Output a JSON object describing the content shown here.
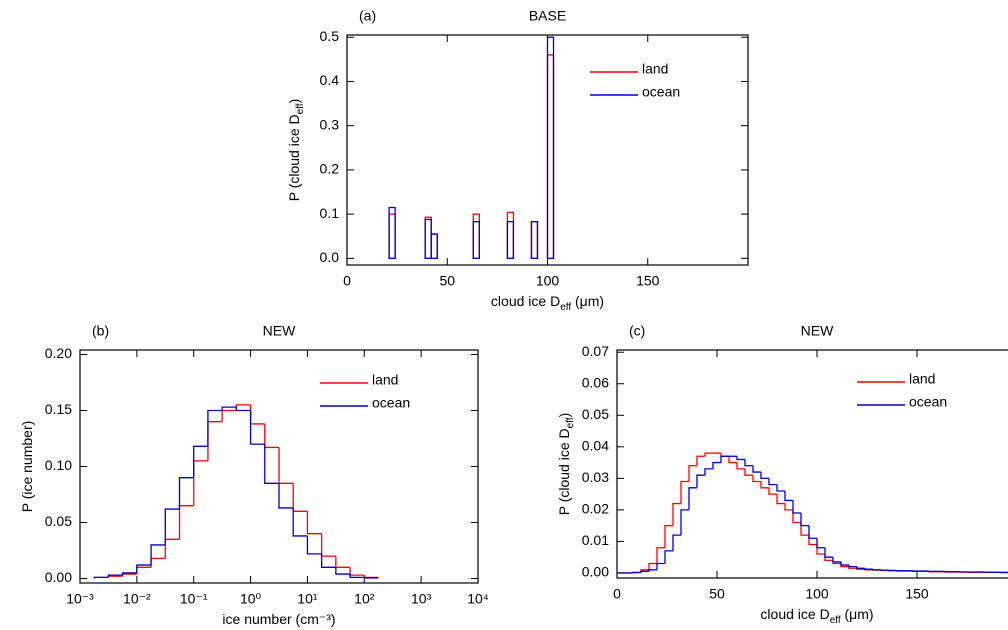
{
  "chart_data": [
    {
      "type": "bar",
      "panel_label": "(a)",
      "title": "BASE",
      "xlabel": [
        "cloud ice D",
        "eff",
        " (μm)"
      ],
      "ylabel": [
        "P (cloud ice D",
        "eff",
        ")"
      ],
      "x": [
        21,
        39,
        42,
        63,
        80,
        92,
        100
      ],
      "series": [
        {
          "name": "land",
          "color": "#ff0000",
          "values": [
            0.1,
            0.093,
            0.055,
            0.1,
            0.104,
            0.083,
            0.46
          ]
        },
        {
          "name": "ocean",
          "color": "#0000cc",
          "values": [
            0.115,
            0.088,
            0.055,
            0.083,
            0.083,
            0.083,
            0.5
          ]
        }
      ],
      "xlim": [
        0,
        200
      ],
      "xticks": [
        0,
        50,
        100,
        150
      ],
      "ylim": [
        -0.015,
        0.505
      ],
      "yticks": [
        {
          "value": 0,
          "label": "0.0"
        },
        {
          "value": 0.1,
          "label": "0.1"
        },
        {
          "value": 0.2,
          "label": "0.2"
        },
        {
          "value": 0.3,
          "label": "0.3"
        },
        {
          "value": 0.4,
          "label": "0.4"
        },
        {
          "value": 0.5,
          "label": "0.5"
        }
      ],
      "legend": "upper right"
    },
    {
      "type": "histogram",
      "panel_label": "(b)",
      "title": "NEW",
      "xlabel": [
        "ice number (cm⁻³)"
      ],
      "ylabel": [
        "P (ice number)"
      ],
      "bins": [
        0.001778,
        0.003162,
        0.005623,
        0.01,
        0.01778,
        0.03162,
        0.05623,
        0.1,
        0.1778,
        0.3162,
        0.5623,
        1,
        1.778,
        3.162,
        5.623,
        10,
        17.78,
        31.62,
        56.23,
        100,
        177.8
      ],
      "series": [
        {
          "name": "land",
          "color": "#ff0000",
          "values": [
            0.001,
            0.002,
            0.004,
            0.01,
            0.018,
            0.035,
            0.065,
            0.105,
            0.14,
            0.15,
            0.155,
            0.138,
            0.117,
            0.085,
            0.06,
            0.04,
            0.02,
            0.01,
            0.003,
            0.001
          ]
        },
        {
          "name": "ocean",
          "color": "#0000cc",
          "values": [
            0.001,
            0.003,
            0.005,
            0.012,
            0.03,
            0.062,
            0.09,
            0.118,
            0.15,
            0.153,
            0.15,
            0.12,
            0.085,
            0.063,
            0.038,
            0.022,
            0.01,
            0.004,
            0.001,
            0.0005
          ]
        }
      ],
      "xlim": [
        0.001,
        10000
      ],
      "xlog": true,
      "xticks": [
        {
          "value": 0.001,
          "label": "10⁻³"
        },
        {
          "value": 0.01,
          "label": "10⁻²"
        },
        {
          "value": 0.1,
          "label": "10⁻¹"
        },
        {
          "value": 1,
          "label": "10⁰"
        },
        {
          "value": 10,
          "label": "10¹"
        },
        {
          "value": 100,
          "label": "10²"
        },
        {
          "value": 1000,
          "label": "10³"
        },
        {
          "value": 10000,
          "label": "10⁴"
        }
      ],
      "ylim": [
        -0.004,
        0.204
      ],
      "yticks": [
        {
          "value": 0,
          "label": "0.00"
        },
        {
          "value": 0.05,
          "label": "0.05"
        },
        {
          "value": 0.1,
          "label": "0.10"
        },
        {
          "value": 0.15,
          "label": "0.15"
        },
        {
          "value": 0.2,
          "label": "0.20"
        }
      ],
      "legend": "upper right"
    },
    {
      "type": "histogram",
      "panel_label": "(c)",
      "title": "NEW",
      "xlabel": [
        "cloud ice D",
        "eff",
        " (μm)"
      ],
      "ylabel": [
        "P (cloud ice D",
        "eff",
        ")"
      ],
      "bins": [
        0,
        4,
        8,
        12,
        16,
        20,
        24,
        28,
        32,
        36,
        40,
        44,
        48,
        52,
        56,
        60,
        64,
        68,
        72,
        76,
        80,
        84,
        88,
        92,
        96,
        100,
        104,
        108,
        112,
        116,
        120,
        124,
        128,
        132,
        136,
        140,
        144,
        148,
        152,
        156,
        160,
        164,
        168,
        172,
        176,
        180,
        184,
        188,
        192,
        196,
        200
      ],
      "series": [
        {
          "name": "land",
          "color": "#ff0000",
          "values": [
            0,
            0,
            0.0002,
            0.001,
            0.003,
            0.008,
            0.015,
            0.022,
            0.029,
            0.034,
            0.037,
            0.038,
            0.038,
            0.037,
            0.035,
            0.033,
            0.031,
            0.029,
            0.027,
            0.025,
            0.022,
            0.02,
            0.016,
            0.012,
            0.009,
            0.006,
            0.004,
            0.003,
            0.002,
            0.0015,
            0.0012,
            0.001,
            0.0009,
            0.0008,
            0.0007,
            0.0006,
            0.0006,
            0.0005,
            0.0005,
            0.0004,
            0.0004,
            0.0003,
            0.0003,
            0.0003,
            0.0002,
            0.0002,
            0.0002,
            0.0002,
            0.0001,
            0.0001
          ]
        },
        {
          "name": "ocean",
          "color": "#0000cc",
          "values": [
            0,
            0,
            0.0001,
            0.0005,
            0.001,
            0.003,
            0.007,
            0.012,
            0.02,
            0.027,
            0.031,
            0.033,
            0.035,
            0.037,
            0.037,
            0.036,
            0.034,
            0.032,
            0.03,
            0.028,
            0.026,
            0.023,
            0.019,
            0.015,
            0.011,
            0.008,
            0.005,
            0.0035,
            0.0025,
            0.002,
            0.0015,
            0.0012,
            0.001,
            0.0009,
            0.0008,
            0.0007,
            0.0007,
            0.0006,
            0.0006,
            0.0005,
            0.0005,
            0.0004,
            0.0004,
            0.0003,
            0.0003,
            0.0003,
            0.0002,
            0.0002,
            0.0002,
            0.0001
          ]
        }
      ],
      "xlim": [
        0,
        200
      ],
      "xticks": [
        0,
        50,
        100,
        150
      ],
      "ylim": [
        -0.0016,
        0.0707
      ],
      "yticks": [
        {
          "value": 0,
          "label": "0.00"
        },
        {
          "value": 0.01,
          "label": "0.01"
        },
        {
          "value": 0.02,
          "label": "0.02"
        },
        {
          "value": 0.03,
          "label": "0.03"
        },
        {
          "value": 0.04,
          "label": "0.04"
        },
        {
          "value": 0.05,
          "label": "0.05"
        },
        {
          "value": 0.06,
          "label": "0.06"
        },
        {
          "value": 0.07,
          "label": "0.07"
        }
      ],
      "legend": "upper right"
    }
  ]
}
